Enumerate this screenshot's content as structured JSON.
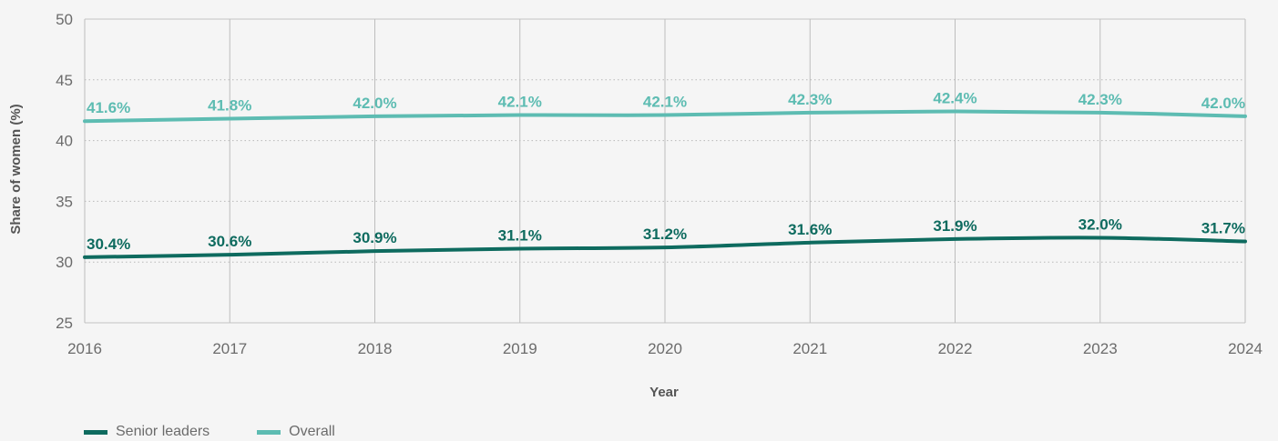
{
  "chart_data": {
    "type": "line",
    "xlabel": "Year",
    "ylabel": "Share of women (%)",
    "x": [
      "2016",
      "2017",
      "2018",
      "2019",
      "2020",
      "2021",
      "2022",
      "2023",
      "2024"
    ],
    "ylim": [
      25,
      50
    ],
    "yticks": [
      25,
      30,
      35,
      40,
      45,
      50
    ],
    "grid": {
      "vertical": true,
      "horizontal_dotted": true
    },
    "legend_position": "bottom-left",
    "series": [
      {
        "name": "Senior leaders",
        "color": "#0e6b5f",
        "values": [
          30.4,
          30.6,
          30.9,
          31.1,
          31.2,
          31.6,
          31.9,
          32.0,
          31.7
        ],
        "labels": [
          "30.4%",
          "30.6%",
          "30.9%",
          "31.1%",
          "31.2%",
          "31.6%",
          "31.9%",
          "32.0%",
          "31.7%"
        ]
      },
      {
        "name": "Overall",
        "color": "#5dbcb2",
        "values": [
          41.6,
          41.8,
          42.0,
          42.1,
          42.1,
          42.3,
          42.4,
          42.3,
          42.0
        ],
        "labels": [
          "41.6%",
          "41.8%",
          "42.0%",
          "42.1%",
          "42.1%",
          "42.3%",
          "42.4%",
          "42.3%",
          "42.0%"
        ]
      }
    ]
  }
}
